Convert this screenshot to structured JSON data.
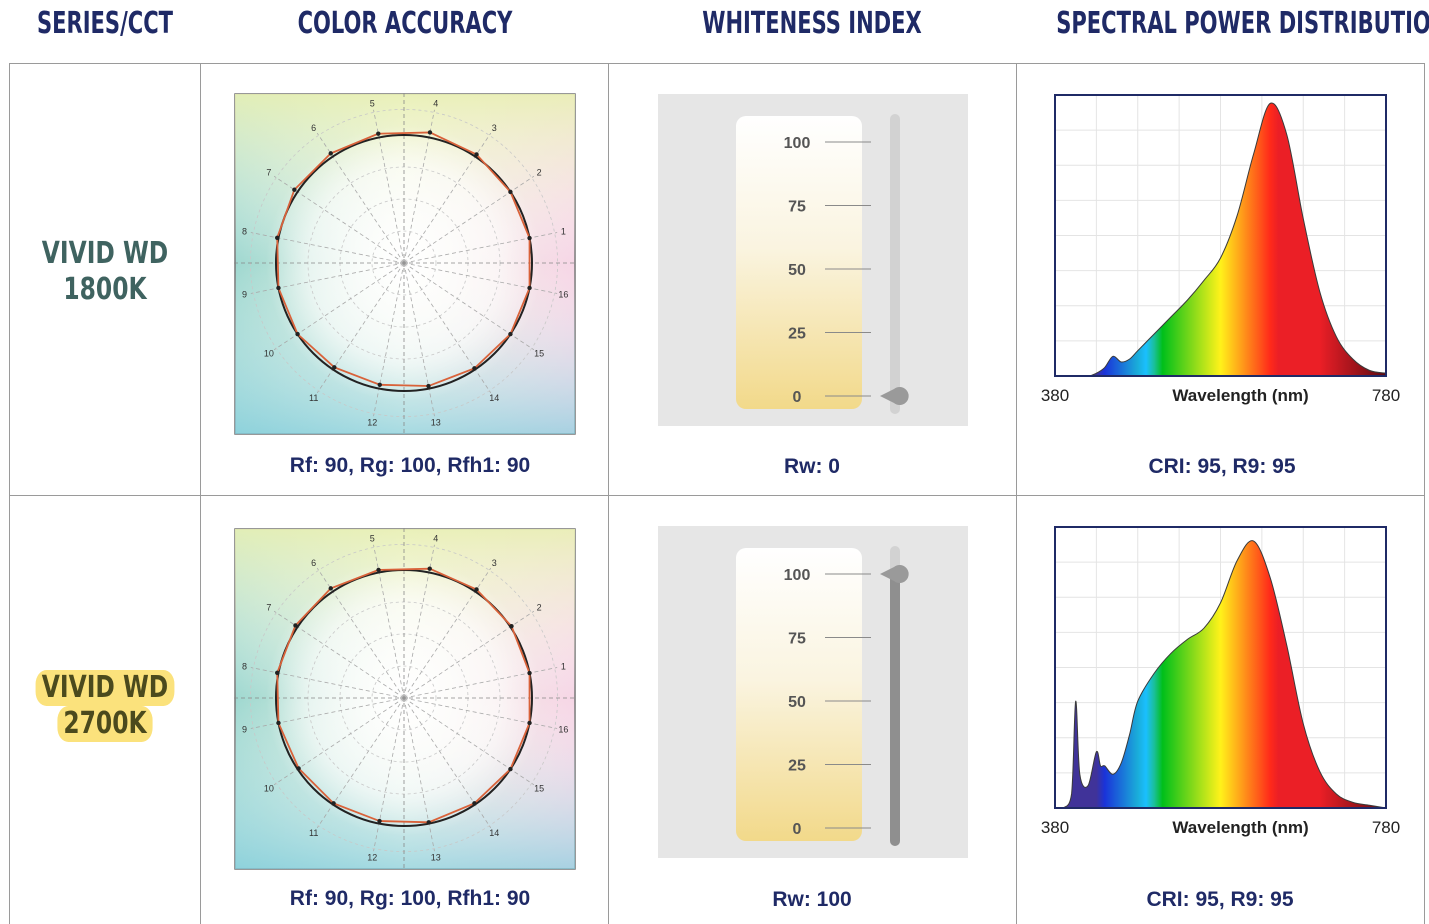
{
  "headers": {
    "series": "SERIES/CCT",
    "color_accuracy": "COLOR ACCURACY",
    "whiteness": "WHITENESS INDEX",
    "spd": "SPECTRAL POWER DISTRIBUTION"
  },
  "rows": [
    {
      "series_line1": "VIVID WD",
      "series_line2": "1800K",
      "highlighted": false,
      "color_caption": "Rf: 90, Rg: 100, Rfh1: 90",
      "whiteness_caption": "Rw: 0",
      "whiteness_value": 0,
      "spd_caption": "CRI: 95, R9: 95"
    },
    {
      "series_line1": "VIVID WD",
      "series_line2": "2700K",
      "highlighted": true,
      "color_caption": "Rf: 90, Rg: 100, Rfh1: 90",
      "whiteness_caption": "Rw: 100",
      "whiteness_value": 100,
      "spd_caption": "CRI: 95, R9: 95"
    }
  ],
  "colors": {
    "header": "#1f2a66",
    "series1": "#3f6360",
    "series2": "#4b4a1d",
    "highlight": "#fbe27c",
    "test_polygon": "#d9623a",
    "reference_circle": "#222222"
  },
  "chart_data": [
    {
      "type": "radar",
      "name": "color-vector-graphic-1800K",
      "categories": [
        "1",
        "2",
        "3",
        "4",
        "5",
        "6",
        "7",
        "8",
        "9",
        "10",
        "11",
        "12",
        "13",
        "14",
        "15",
        "16"
      ],
      "values": [
        1.0,
        1.0,
        1.02,
        1.04,
        1.03,
        1.03,
        1.03,
        1.01,
        1.0,
        1.0,
        0.98,
        0.97,
        0.98,
        0.99,
        1.0,
        1.0
      ]
    },
    {
      "type": "bar",
      "name": "whiteness-index-1800K",
      "ticks": [
        "100",
        "75",
        "50",
        "25",
        "0"
      ],
      "ylim": [
        0,
        100
      ],
      "value": 0
    },
    {
      "type": "area",
      "name": "spd-1800K",
      "xlabel": "Wavelength (nm)",
      "x_ticks": [
        "380",
        "780"
      ],
      "xlim": [
        380,
        780
      ],
      "x": [
        380,
        400,
        420,
        430,
        440,
        450,
        460,
        470,
        480,
        500,
        520,
        540,
        560,
        580,
        600,
        620,
        640,
        660,
        680,
        700,
        720,
        740,
        760,
        780
      ],
      "y": [
        0,
        0,
        0,
        0.01,
        0.03,
        0.07,
        0.05,
        0.06,
        0.09,
        0.15,
        0.21,
        0.27,
        0.34,
        0.42,
        0.57,
        0.79,
        0.97,
        0.86,
        0.56,
        0.3,
        0.14,
        0.06,
        0.02,
        0.01
      ]
    },
    {
      "type": "radar",
      "name": "color-vector-graphic-2700K",
      "categories": [
        "1",
        "2",
        "3",
        "4",
        "5",
        "6",
        "7",
        "8",
        "9",
        "10",
        "11",
        "12",
        "13",
        "14",
        "15",
        "16"
      ],
      "values": [
        1.0,
        1.01,
        1.02,
        1.03,
        1.02,
        1.03,
        1.02,
        1.01,
        1.0,
        0.99,
        0.99,
        0.98,
        0.99,
        0.99,
        1.0,
        1.0
      ]
    },
    {
      "type": "bar",
      "name": "whiteness-index-2700K",
      "ticks": [
        "100",
        "75",
        "50",
        "25",
        "0"
      ],
      "ylim": [
        0,
        100
      ],
      "value": 100
    },
    {
      "type": "area",
      "name": "spd-2700K",
      "xlabel": "Wavelength (nm)",
      "x_ticks": [
        "380",
        "780"
      ],
      "xlim": [
        380,
        780
      ],
      "x": [
        380,
        390,
        400,
        405,
        410,
        420,
        430,
        435,
        440,
        450,
        460,
        470,
        480,
        500,
        520,
        540,
        560,
        580,
        600,
        620,
        640,
        660,
        680,
        700,
        720,
        740,
        760,
        780
      ],
      "y": [
        0,
        0,
        0.05,
        0.38,
        0.12,
        0.08,
        0.2,
        0.15,
        0.15,
        0.12,
        0.16,
        0.26,
        0.38,
        0.48,
        0.55,
        0.6,
        0.64,
        0.73,
        0.88,
        0.95,
        0.82,
        0.58,
        0.3,
        0.13,
        0.05,
        0.02,
        0.01,
        0
      ]
    }
  ]
}
